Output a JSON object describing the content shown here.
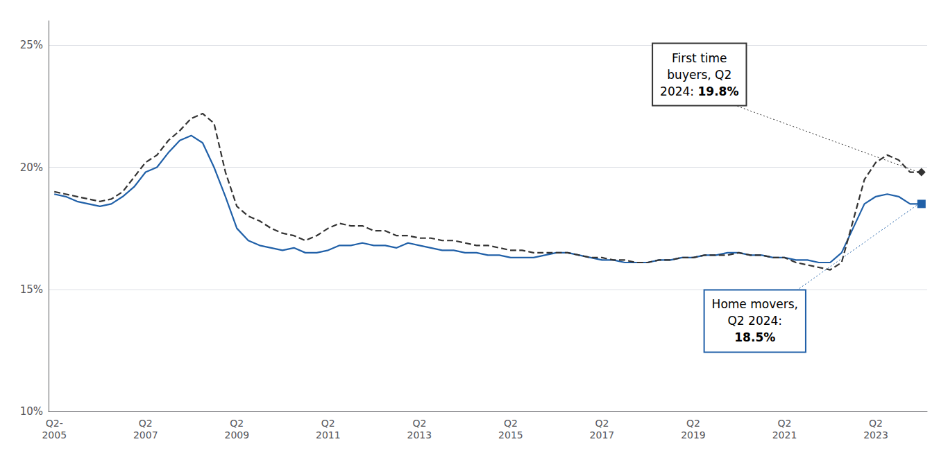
{
  "chart_data": {
    "type": "line",
    "categories": [
      "Q2-\n2005",
      null,
      null,
      null,
      null,
      null,
      null,
      null,
      "Q2\n2007",
      null,
      null,
      null,
      null,
      null,
      null,
      null,
      "Q2\n2009",
      null,
      null,
      null,
      null,
      null,
      null,
      null,
      "Q2\n2011",
      null,
      null,
      null,
      null,
      null,
      null,
      null,
      "Q2\n2013",
      null,
      null,
      null,
      null,
      null,
      null,
      null,
      "Q2\n2015",
      null,
      null,
      null,
      null,
      null,
      null,
      null,
      "Q2\n2017",
      null,
      null,
      null,
      null,
      null,
      null,
      null,
      "Q2\n2019",
      null,
      null,
      null,
      null,
      null,
      null,
      null,
      "Q2\n2021",
      null,
      null,
      null,
      null,
      null,
      null,
      null,
      "Q2\n2023",
      null,
      null,
      null,
      null
    ],
    "series": [
      {
        "color": "#2060a8",
        "line_style": "solid",
        "marker": "square",
        "values": [
          18.9,
          18.8,
          18.6,
          18.5,
          18.4,
          18.5,
          18.8,
          19.2,
          19.8,
          20.0,
          20.6,
          21.1,
          21.3,
          21.0,
          20.0,
          18.8,
          17.5,
          17.0,
          16.8,
          16.7,
          16.6,
          16.7,
          16.5,
          16.5,
          16.6,
          16.8,
          16.8,
          16.9,
          16.8,
          16.8,
          16.7,
          16.9,
          16.8,
          16.7,
          16.6,
          16.6,
          16.5,
          16.5,
          16.4,
          16.4,
          16.3,
          16.3,
          16.3,
          16.4,
          16.5,
          16.5,
          16.4,
          16.3,
          16.2,
          16.2,
          16.1,
          16.1,
          16.1,
          16.2,
          16.2,
          16.3,
          16.3,
          16.4,
          16.4,
          16.5,
          16.5,
          16.4,
          16.4,
          16.3,
          16.3,
          16.2,
          16.2,
          16.1,
          16.1,
          16.5,
          17.5,
          18.5,
          18.8,
          18.9,
          18.8,
          18.5,
          18.5
        ]
      },
      {
        "color": "#333333",
        "line_style": "dashed",
        "marker": "diamond",
        "values": [
          19.0,
          18.9,
          18.8,
          18.7,
          18.6,
          18.7,
          19.0,
          19.6,
          20.2,
          20.5,
          21.1,
          21.5,
          22.0,
          22.2,
          21.8,
          19.8,
          18.4,
          18.0,
          17.8,
          17.5,
          17.3,
          17.2,
          17.0,
          17.2,
          17.5,
          17.7,
          17.6,
          17.6,
          17.4,
          17.4,
          17.2,
          17.2,
          17.1,
          17.1,
          17.0,
          17.0,
          16.9,
          16.8,
          16.8,
          16.7,
          16.6,
          16.6,
          16.5,
          16.5,
          16.5,
          16.5,
          16.4,
          16.3,
          16.3,
          16.2,
          16.2,
          16.1,
          16.1,
          16.2,
          16.2,
          16.3,
          16.3,
          16.4,
          16.4,
          16.4,
          16.5,
          16.4,
          16.4,
          16.3,
          16.3,
          16.1,
          16.0,
          15.9,
          15.8,
          16.1,
          17.8,
          19.5,
          20.2,
          20.5,
          20.3,
          19.8,
          19.8
        ]
      }
    ],
    "ylim": [
      10,
      26
    ],
    "yticks": [
      {
        "value": 10,
        "label": "10%"
      },
      {
        "value": 15,
        "label": "15%"
      },
      {
        "value": 20,
        "label": "20%"
      },
      {
        "value": 25,
        "label": "25%"
      }
    ],
    "grid": true,
    "annotations": [
      {
        "text": "First time\nbuyers, Q2\n2024: ",
        "bold": "19.8%",
        "series": 1
      },
      {
        "text": "Home movers,\nQ2 2024:\n",
        "bold": "18.5%",
        "series": 0
      }
    ]
  }
}
